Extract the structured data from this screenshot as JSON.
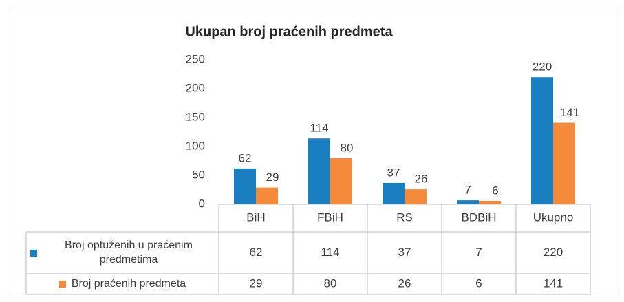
{
  "chart_data": {
    "type": "bar",
    "title": "Ukupan broj praćenih predmeta",
    "categories": [
      "BiH",
      "FBiH",
      "RS",
      "BDBiH",
      "Ukupno"
    ],
    "series": [
      {
        "name": "Broj optuženih u praćenim predmetima",
        "color": "#1a7fc1",
        "values": [
          62,
          114,
          37,
          7,
          220
        ]
      },
      {
        "name": "Broj praćenih predmeta",
        "color": "#f58a3a",
        "values": [
          29,
          80,
          26,
          6,
          141
        ]
      }
    ],
    "ylim": [
      0,
      250
    ],
    "yticks": [
      0,
      50,
      100,
      150,
      200,
      250
    ],
    "grid": false,
    "data_table": true
  }
}
